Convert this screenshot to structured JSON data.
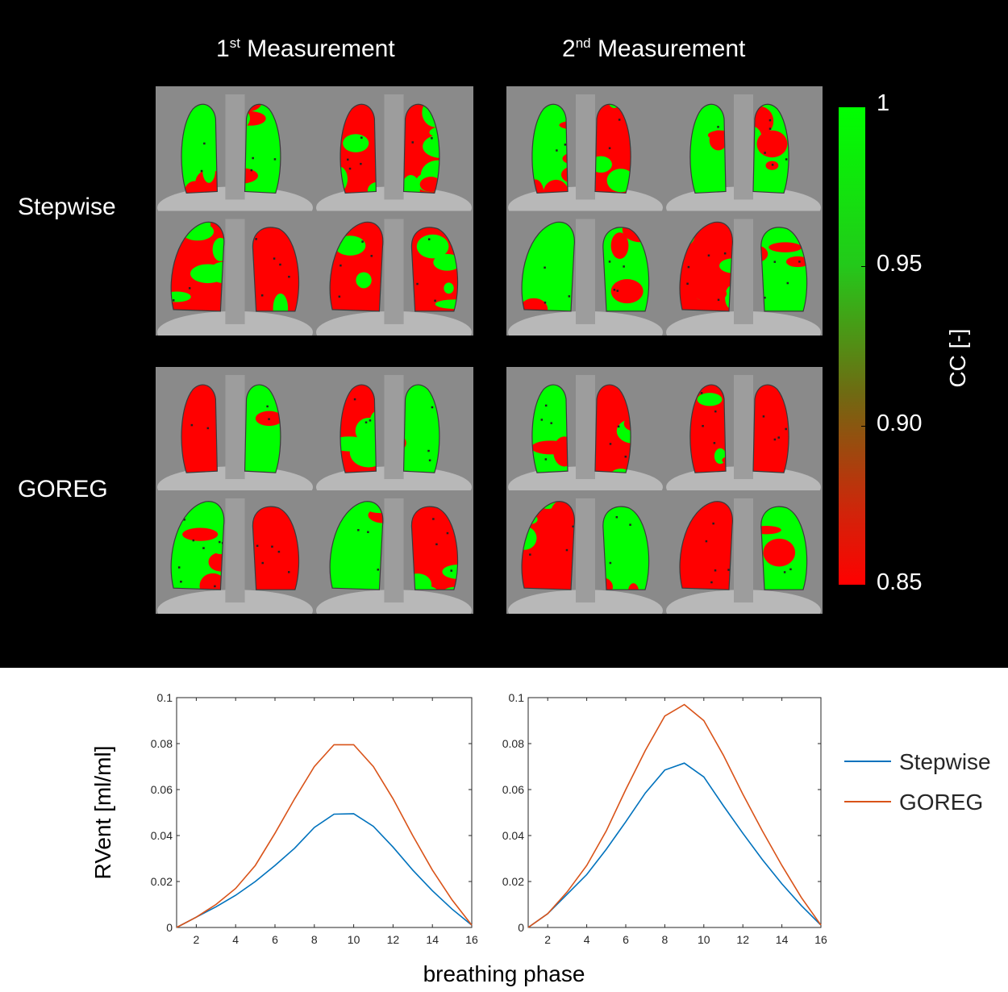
{
  "figure": {
    "column_titles": [
      {
        "base": "1",
        "sup": "st",
        "rest": " Measurement"
      },
      {
        "base": "2",
        "sup": "nd",
        "rest": " Measurement"
      }
    ],
    "row_labels": [
      "Stepwise",
      "GOREG"
    ],
    "colorbar": {
      "title": "CC [-]",
      "ticks": [
        "1",
        "0.95",
        "0.90",
        "0.85"
      ],
      "colors": {
        "max": "#00ff00",
        "min": "#ff0000"
      }
    }
  },
  "chart_data": [
    {
      "type": "line",
      "title": "",
      "xlabel": "breathing phase",
      "ylabel": "RVent [ml/ml]",
      "x": [
        1,
        2,
        3,
        4,
        5,
        6,
        7,
        8,
        9,
        10,
        11,
        12,
        13,
        14,
        15,
        16
      ],
      "xlim": [
        1,
        16
      ],
      "ylim": [
        0,
        0.1
      ],
      "xticks": [
        2,
        4,
        6,
        8,
        10,
        12,
        14,
        16
      ],
      "yticks": [
        0,
        0.02,
        0.04,
        0.06,
        0.08,
        0.1
      ],
      "ytick_labels": [
        "0",
        "0.02",
        "0.04",
        "0.06",
        "0.08",
        "0.1"
      ],
      "series": [
        {
          "name": "Stepwise",
          "color": "#0072bd",
          "values": [
            0,
            0.0045,
            0.009,
            0.014,
            0.02,
            0.027,
            0.0345,
            0.0435,
            0.0493,
            0.0495,
            0.044,
            0.035,
            0.025,
            0.016,
            0.008,
            0.001
          ]
        },
        {
          "name": "GOREG",
          "color": "#d95319",
          "values": [
            0,
            0.0045,
            0.01,
            0.017,
            0.027,
            0.041,
            0.056,
            0.07,
            0.0795,
            0.0795,
            0.07,
            0.056,
            0.04,
            0.025,
            0.012,
            0.001
          ]
        }
      ]
    },
    {
      "type": "line",
      "title": "",
      "xlabel": "breathing phase",
      "ylabel": "",
      "x": [
        1,
        2,
        3,
        4,
        5,
        6,
        7,
        8,
        9,
        10,
        11,
        12,
        13,
        14,
        15,
        16
      ],
      "xlim": [
        1,
        16
      ],
      "ylim": [
        0,
        0.1
      ],
      "xticks": [
        2,
        4,
        6,
        8,
        10,
        12,
        14,
        16
      ],
      "yticks": [
        0,
        0.02,
        0.04,
        0.06,
        0.08,
        0.1
      ],
      "ytick_labels": [
        "0",
        "0.02",
        "0.04",
        "0.06",
        "0.08",
        "0.1"
      ],
      "series": [
        {
          "name": "Stepwise",
          "color": "#0072bd",
          "values": [
            0,
            0.006,
            0.0145,
            0.023,
            0.034,
            0.046,
            0.0585,
            0.0685,
            0.0715,
            0.0655,
            0.053,
            0.041,
            0.0295,
            0.019,
            0.0095,
            0.001
          ]
        },
        {
          "name": "GOREG",
          "color": "#d95319",
          "values": [
            0,
            0.006,
            0.0155,
            0.027,
            0.042,
            0.06,
            0.077,
            0.092,
            0.097,
            0.09,
            0.075,
            0.058,
            0.042,
            0.027,
            0.013,
            0.001
          ]
        }
      ]
    }
  ],
  "legend": {
    "position": "right",
    "entries": [
      {
        "name": "Stepwise",
        "color": "#0072bd"
      },
      {
        "name": "GOREG",
        "color": "#d95319"
      }
    ]
  }
}
